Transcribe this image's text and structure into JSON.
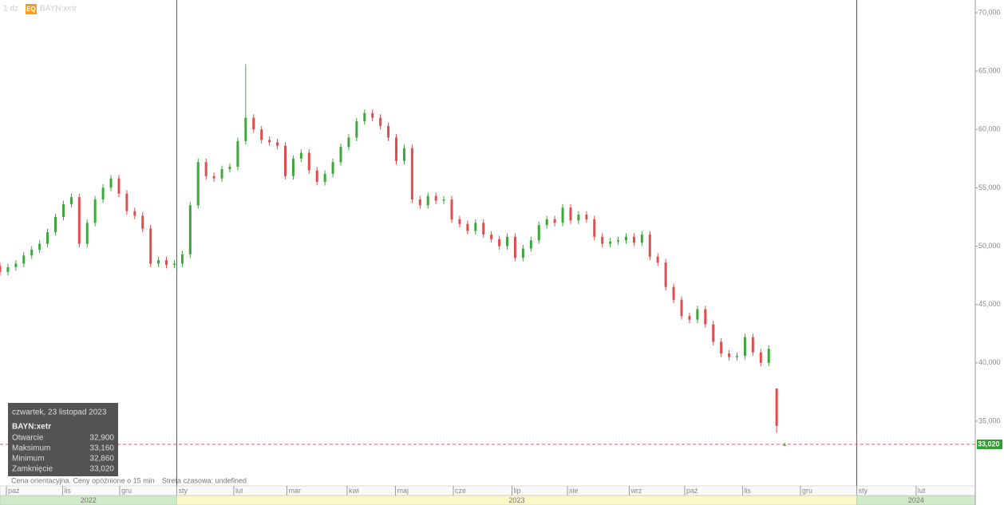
{
  "chart_data": {
    "type": "candlestick",
    "header": {
      "interval": "1 dz.",
      "badge": "EQ",
      "symbol": "BAYN:xetr"
    },
    "series": {
      "up_color": "#3aa83a",
      "down_color": "#e24c4c",
      "open": [
        48300,
        47800,
        48200,
        48500,
        49200,
        49700,
        50200,
        51200,
        52500,
        53600,
        54200,
        50200,
        52000,
        54000,
        55000,
        55800,
        54500,
        53000,
        52600,
        51500,
        48500,
        48800,
        48400,
        48500,
        49300,
        53500,
        57200,
        56000,
        55800,
        56600,
        56800,
        59000,
        61000,
        60000,
        59100,
        58900,
        58600,
        56000,
        57500,
        58000,
        56500,
        55500,
        56200,
        57200,
        58500,
        59300,
        60700,
        61400,
        61000,
        60300,
        59300,
        57300,
        58400,
        54000,
        53500,
        54300,
        53900,
        54000,
        52300,
        51900,
        51300,
        52000,
        51000,
        50600,
        50000,
        50800,
        49000,
        49800,
        50500,
        51800,
        52300,
        52000,
        53300,
        52200,
        52700,
        52300,
        50800,
        50200,
        50400,
        50500,
        50800,
        50300,
        51000,
        49100,
        48600,
        46500,
        45400,
        44000,
        43700,
        44600,
        43300,
        41800,
        40800,
        40500,
        40600,
        42200,
        40900,
        40000,
        37800,
        32900
      ],
      "high": [
        48600,
        48500,
        48800,
        49500,
        50000,
        50500,
        51500,
        52800,
        53900,
        54500,
        54500,
        52300,
        54300,
        55300,
        56100,
        56100,
        54800,
        53300,
        52900,
        51800,
        49100,
        49100,
        48800,
        49600,
        53800,
        57500,
        57500,
        56300,
        56900,
        57100,
        59300,
        65600,
        61300,
        60300,
        59400,
        59200,
        58900,
        57800,
        58300,
        58300,
        56800,
        56500,
        57500,
        58800,
        59600,
        61000,
        61700,
        61700,
        61300,
        60600,
        59600,
        58700,
        58700,
        54300,
        54600,
        54600,
        54300,
        54300,
        52600,
        52200,
        52300,
        52300,
        51300,
        50900,
        51100,
        51100,
        50100,
        50800,
        52100,
        52600,
        52600,
        53600,
        53600,
        53000,
        53000,
        52600,
        51100,
        50700,
        50800,
        51100,
        51100,
        51300,
        51300,
        49400,
        48900,
        46800,
        45700,
        44300,
        44900,
        44900,
        43600,
        42100,
        41100,
        40900,
        42500,
        42500,
        41200,
        41500,
        37800,
        33160
      ],
      "low": [
        47500,
        47500,
        47900,
        48200,
        48900,
        49400,
        49900,
        50900,
        52200,
        53300,
        49900,
        49900,
        51700,
        53700,
        54700,
        54200,
        52700,
        52300,
        51200,
        48200,
        48200,
        48100,
        48100,
        48200,
        49000,
        53200,
        55700,
        55500,
        55500,
        56300,
        56500,
        58700,
        59700,
        58800,
        58600,
        58300,
        55700,
        55700,
        57200,
        56200,
        55200,
        55200,
        55900,
        56900,
        58200,
        59000,
        60400,
        60700,
        60000,
        59000,
        57000,
        57000,
        53700,
        53200,
        53200,
        53600,
        53600,
        52000,
        51600,
        51000,
        51000,
        50700,
        50300,
        49700,
        49700,
        48700,
        48700,
        49500,
        50200,
        51500,
        51700,
        51700,
        51900,
        51900,
        52000,
        50500,
        49900,
        49900,
        50100,
        50200,
        50000,
        50000,
        48800,
        48300,
        46200,
        45100,
        43700,
        43400,
        43400,
        43000,
        41500,
        40500,
        40200,
        40200,
        40300,
        40600,
        39700,
        39700,
        34000,
        32860
      ],
      "close": [
        47800,
        48200,
        48500,
        49200,
        49700,
        50200,
        51200,
        52500,
        53600,
        54200,
        50200,
        52000,
        54000,
        55000,
        55800,
        54500,
        53000,
        52600,
        51500,
        48500,
        48800,
        48400,
        48500,
        49300,
        53500,
        57200,
        56000,
        55800,
        56600,
        56800,
        59000,
        61000,
        60000,
        59100,
        58900,
        58600,
        56000,
        57500,
        58000,
        56500,
        55500,
        56200,
        57200,
        58500,
        59300,
        60700,
        61400,
        61000,
        60300,
        59300,
        57300,
        58400,
        54000,
        53500,
        54300,
        53900,
        54000,
        52300,
        51900,
        51300,
        52000,
        51000,
        50600,
        50000,
        50800,
        49000,
        49800,
        50500,
        51800,
        52300,
        52000,
        53300,
        52200,
        52700,
        52300,
        50800,
        50200,
        50400,
        50500,
        50800,
        50300,
        51000,
        49100,
        48600,
        46500,
        45400,
        44000,
        43700,
        44600,
        43300,
        41800,
        40800,
        40500,
        40600,
        42200,
        40900,
        40000,
        41200,
        34600,
        33020
      ],
      "last_label": "33,020"
    },
    "xlim": [
      0,
      123.06
    ],
    "xticks": [
      {
        "value": 0.8,
        "label": "paź"
      },
      {
        "value": 7.9,
        "label": "lis"
      },
      {
        "value": 15.1,
        "label": "gru"
      },
      {
        "value": 22.3,
        "label": "sty"
      },
      {
        "value": 29.5,
        "label": "lut"
      },
      {
        "value": 36.2,
        "label": "mar"
      },
      {
        "value": 43.8,
        "label": "kwi"
      },
      {
        "value": 49.9,
        "label": "maj"
      },
      {
        "value": 57.2,
        "label": "cze"
      },
      {
        "value": 64.6,
        "label": "lip"
      },
      {
        "value": 71.6,
        "label": "sie"
      },
      {
        "value": 79.4,
        "label": "wrz"
      },
      {
        "value": 86.4,
        "label": "paź"
      },
      {
        "value": 93.7,
        "label": "lis"
      },
      {
        "value": 101.0,
        "label": "gru"
      },
      {
        "value": 108.1,
        "label": "sty"
      },
      {
        "value": 115.6,
        "label": "lut"
      }
    ],
    "years": [
      "2022",
      "2023",
      "2024"
    ],
    "ylim": [
      29530,
      71090
    ],
    "yticks": [
      {
        "value": 35000,
        "label": "35,000"
      },
      {
        "value": 40000,
        "label": "40,000"
      },
      {
        "value": 45000,
        "label": "45,000"
      },
      {
        "value": 50000,
        "label": "50,000"
      },
      {
        "value": 55000,
        "label": "55,000"
      },
      {
        "value": 60000,
        "label": "60,000"
      },
      {
        "value": 65000,
        "label": "65,000"
      },
      {
        "value": 70000,
        "label": "70,000"
      }
    ],
    "tooltip": {
      "date": "czwartek, 23 listopad 2023",
      "symbol": "BAYN:xetr",
      "rows": [
        {
          "label": "Otwarcie",
          "value": "32,900"
        },
        {
          "label": "Maksimum",
          "value": "33,160"
        },
        {
          "label": "Minimum",
          "value": "32,860"
        },
        {
          "label": "Zamknięcie",
          "value": "33,020"
        }
      ]
    },
    "footer": {
      "note": "Cena orientacyjna. Ceny opóźnione o 15 min",
      "timezone": "Strefa czasowa: undefined"
    }
  }
}
